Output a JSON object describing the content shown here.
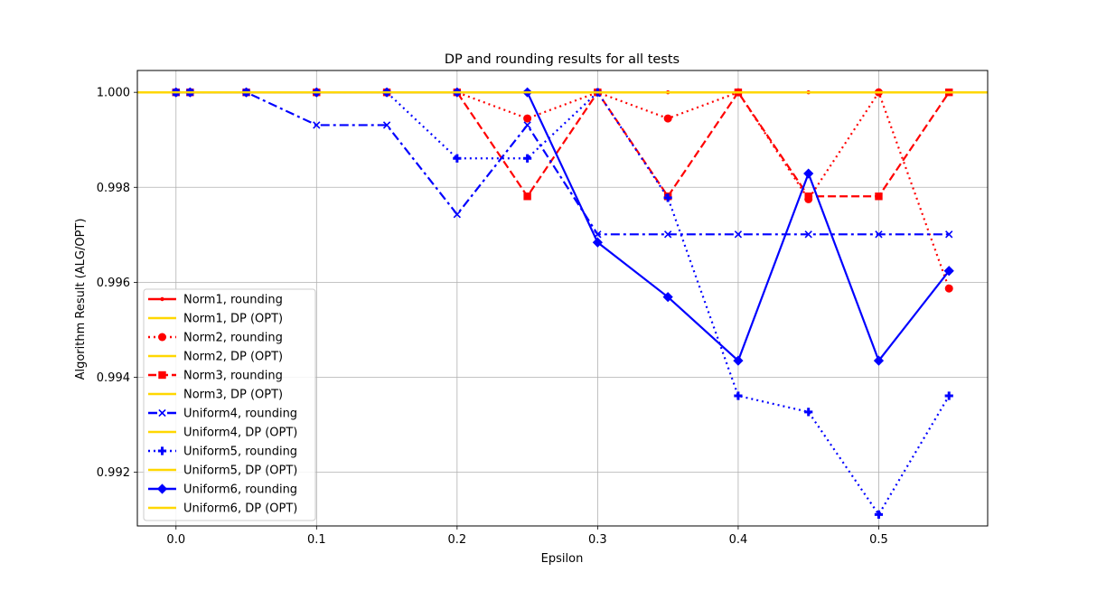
{
  "chart_data": {
    "type": "line",
    "title": "DP and rounding results for all tests",
    "xlabel": "Epsilon",
    "ylabel": "Algorithm Result (ALG/OPT)",
    "xlim": [
      -0.0275,
      0.5775
    ],
    "ylim": [
      0.99087,
      1.00046
    ],
    "x_ticks": [
      "0.0",
      "0.1",
      "0.2",
      "0.3",
      "0.4",
      "0.5"
    ],
    "y_ticks": [
      "0.992",
      "0.994",
      "0.996",
      "0.998",
      "1.000"
    ],
    "grid": true,
    "legend_position": "lower-left",
    "x": [
      0.0,
      0.01,
      0.05,
      0.1,
      0.15,
      0.2,
      0.25,
      0.3,
      0.35,
      0.4,
      0.45,
      0.5,
      0.55
    ],
    "series": [
      {
        "name": "Norm1, rounding",
        "color": "#ff0000",
        "dash": "solid",
        "marker": "point",
        "values": [
          1.0,
          1.0,
          1.0,
          1.0,
          1.0,
          1.0,
          1.0,
          1.0,
          1.0,
          1.0,
          1.0,
          1.0,
          1.0
        ]
      },
      {
        "name": "Norm1, DP (OPT)",
        "color": "#ffd700",
        "dash": "solid",
        "marker": "none",
        "values": [
          1.0,
          1.0,
          1.0,
          1.0,
          1.0,
          1.0,
          1.0,
          1.0,
          1.0,
          1.0,
          1.0,
          1.0,
          1.0
        ]
      },
      {
        "name": "Norm2, rounding",
        "color": "#ff0000",
        "dash": "dotted",
        "marker": "circle",
        "values": [
          1.0,
          1.0,
          1.0,
          1.0,
          1.0,
          1.0,
          0.99945,
          1.0,
          0.99945,
          1.0,
          0.99775,
          1.0,
          0.99587
        ]
      },
      {
        "name": "Norm2, DP (OPT)",
        "color": "#ffd700",
        "dash": "solid",
        "marker": "none",
        "values": [
          1.0,
          1.0,
          1.0,
          1.0,
          1.0,
          1.0,
          1.0,
          1.0,
          1.0,
          1.0,
          1.0,
          1.0,
          1.0
        ]
      },
      {
        "name": "Norm3, rounding",
        "color": "#ff0000",
        "dash": "dashed",
        "marker": "square",
        "values": [
          1.0,
          1.0,
          1.0,
          1.0,
          1.0,
          1.0,
          0.99781,
          1.0,
          0.99781,
          1.0,
          0.99781,
          0.99781,
          1.0
        ]
      },
      {
        "name": "Norm3, DP (OPT)",
        "color": "#ffd700",
        "dash": "solid",
        "marker": "none",
        "values": [
          1.0,
          1.0,
          1.0,
          1.0,
          1.0,
          1.0,
          1.0,
          1.0,
          1.0,
          1.0,
          1.0,
          1.0,
          1.0
        ]
      },
      {
        "name": "Uniform4, rounding",
        "color": "#0000ff",
        "dash": "dashdot",
        "marker": "x",
        "values": [
          1.0,
          1.0,
          1.0,
          0.99931,
          0.99931,
          0.99743,
          0.99931,
          0.99701,
          0.99701,
          0.99701,
          0.99701,
          0.99701,
          0.99701
        ]
      },
      {
        "name": "Uniform4, DP (OPT)",
        "color": "#ffd700",
        "dash": "solid",
        "marker": "none",
        "values": [
          1.0,
          1.0,
          1.0,
          1.0,
          1.0,
          1.0,
          1.0,
          1.0,
          1.0,
          1.0,
          1.0,
          1.0,
          1.0
        ]
      },
      {
        "name": "Uniform5, rounding",
        "color": "#0000ff",
        "dash": "dotted",
        "marker": "plus",
        "values": [
          1.0,
          1.0,
          1.0,
          1.0,
          1.0,
          0.99861,
          0.99861,
          1.0,
          0.99778,
          0.99361,
          0.99327,
          0.99111,
          0.99361
        ]
      },
      {
        "name": "Uniform5, DP (OPT)",
        "color": "#ffd700",
        "dash": "solid",
        "marker": "none",
        "values": [
          1.0,
          1.0,
          1.0,
          1.0,
          1.0,
          1.0,
          1.0,
          1.0,
          1.0,
          1.0,
          1.0,
          1.0,
          1.0
        ]
      },
      {
        "name": "Uniform6, rounding",
        "color": "#0000ff",
        "dash": "solid",
        "marker": "diamond",
        "values": [
          1.0,
          1.0,
          1.0,
          1.0,
          1.0,
          1.0,
          1.0,
          0.99684,
          0.99569,
          0.99435,
          0.99829,
          0.99435,
          0.99624
        ]
      },
      {
        "name": "Uniform6, DP (OPT)",
        "color": "#ffd700",
        "dash": "solid",
        "marker": "none",
        "values": [
          1.0,
          1.0,
          1.0,
          1.0,
          1.0,
          1.0,
          1.0,
          1.0,
          1.0,
          1.0,
          1.0,
          1.0,
          1.0
        ]
      }
    ]
  }
}
